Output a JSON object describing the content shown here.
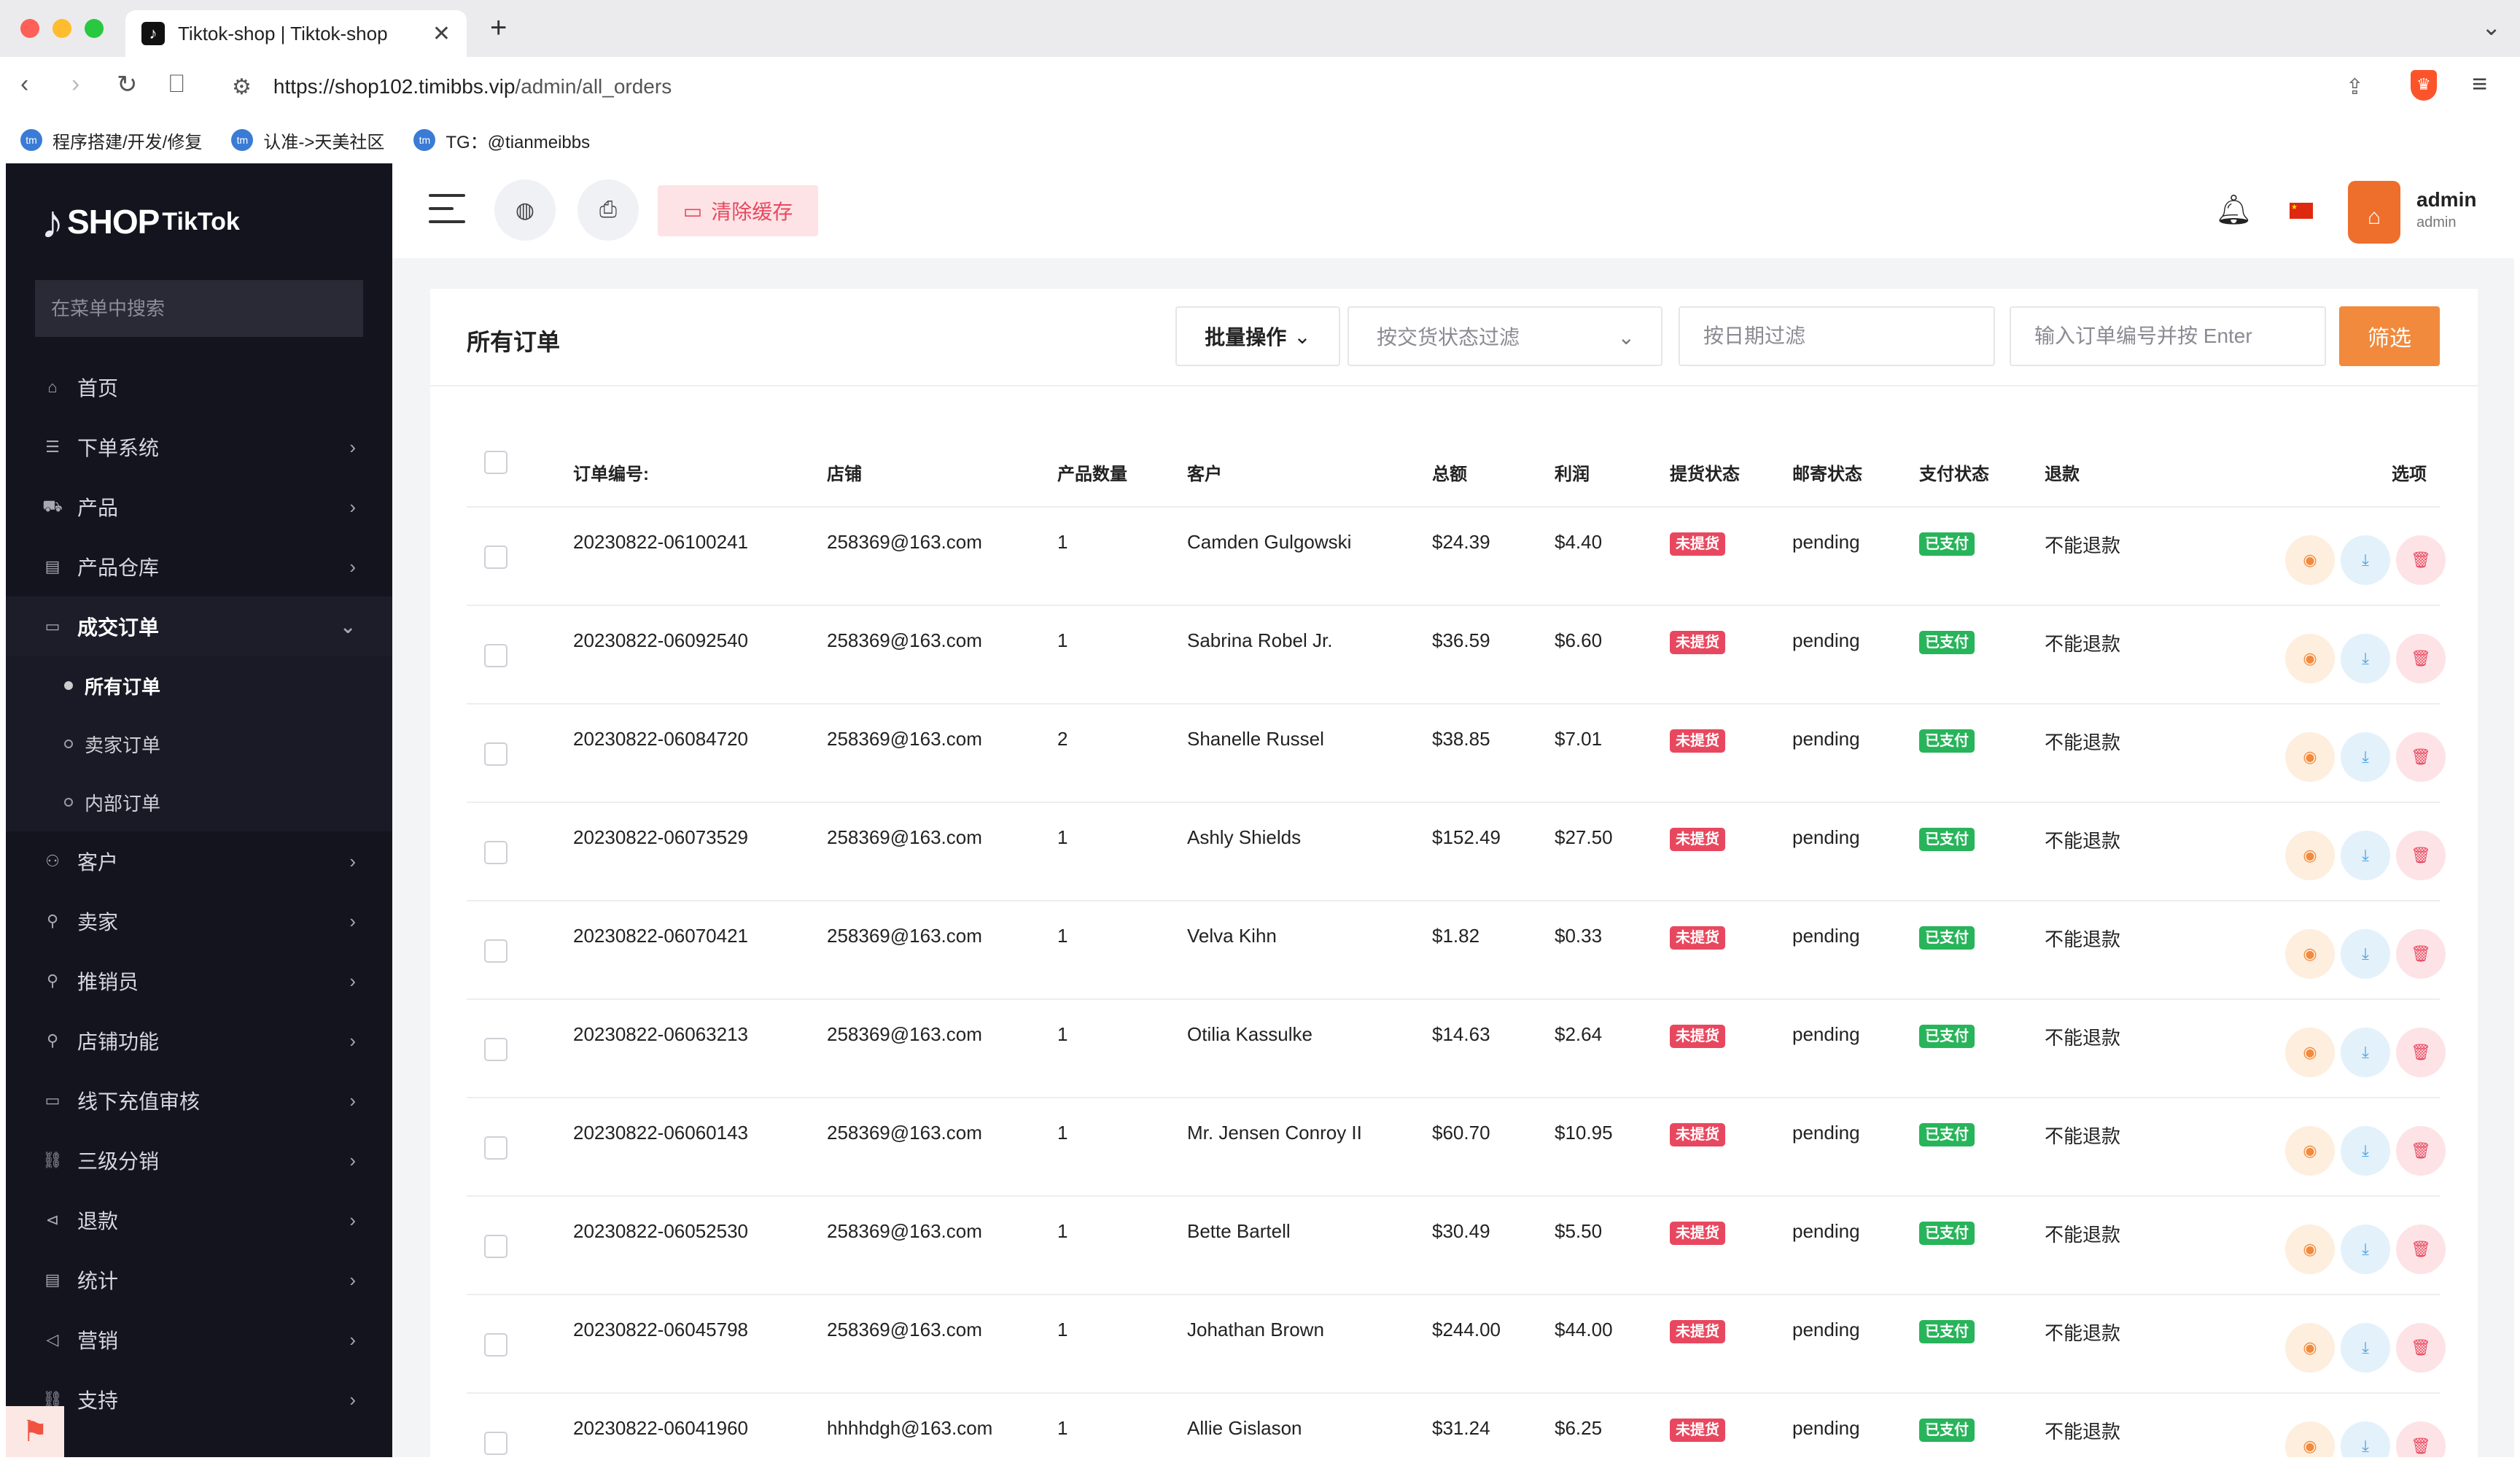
{
  "browser": {
    "tab_title": "Tiktok-shop | Tiktok-shop",
    "tab_close": "✕",
    "new_tab": "+",
    "url_host": "https://shop102.timibbs.vip",
    "url_path": "/admin/all_orders",
    "bookmarks": [
      {
        "label": "程序搭建/开发/修复"
      },
      {
        "label": "认准->天美社区"
      },
      {
        "label": "TG：@tianmeibbs"
      }
    ]
  },
  "sidebar": {
    "logo_shop": "SHOP",
    "logo_tiktok": "TikTok",
    "search_placeholder": "在菜单中搜索",
    "items": [
      {
        "label": "首页",
        "icon": "⌂",
        "chevron": ""
      },
      {
        "label": "下单系统",
        "icon": "☰",
        "chevron": "›"
      },
      {
        "label": "产品",
        "icon": "⛟",
        "chevron": "›"
      },
      {
        "label": "产品仓库",
        "icon": "▤",
        "chevron": "›"
      },
      {
        "label": "成交订单",
        "icon": "▭",
        "chevron": "⌄"
      }
    ],
    "subitems": [
      {
        "label": "所有订单"
      },
      {
        "label": "卖家订单"
      },
      {
        "label": "内部订单"
      }
    ],
    "items2": [
      {
        "label": "客户",
        "icon": "⚇",
        "chevron": "›"
      },
      {
        "label": "卖家",
        "icon": "⚲",
        "chevron": "›"
      },
      {
        "label": "推销员",
        "icon": "⚲",
        "chevron": "›"
      },
      {
        "label": "店铺功能",
        "icon": "⚲",
        "chevron": "›"
      },
      {
        "label": "线下充值审核",
        "icon": "▭",
        "chevron": "›"
      },
      {
        "label": "三级分销",
        "icon": "⛓",
        "chevron": "›"
      },
      {
        "label": "退款",
        "icon": "⊲",
        "chevron": "›"
      },
      {
        "label": "统计",
        "icon": "▤",
        "chevron": "›"
      },
      {
        "label": "营销",
        "icon": "◁",
        "chevron": "›"
      },
      {
        "label": "支持",
        "icon": "⛓",
        "chevron": "›"
      }
    ]
  },
  "topbar": {
    "clear_cache": "清除缓存",
    "user_name": "admin",
    "user_role": "admin"
  },
  "orders": {
    "title": "所有订单",
    "bulk_label": "批量操作",
    "status_filter_placeholder": "按交货状态过滤",
    "date_filter_placeholder": "按日期过滤",
    "code_search_placeholder": "输入订单编号并按 Enter",
    "filter_button": "筛选",
    "columns": {
      "code": "订单编号:",
      "shop": "店铺",
      "qty": "产品数量",
      "customer": "客户",
      "amount": "总额",
      "profit": "利润",
      "pickup": "提货状态",
      "shipping": "邮寄状态",
      "payment": "支付状态",
      "refund": "退款",
      "options": "选项"
    },
    "rows": [
      {
        "code": "20230822-06100241",
        "shop": "258369@163.com",
        "qty": "1",
        "customer": "Camden Gulgowski",
        "amount": "$24.39",
        "profit": "$4.40",
        "pickup": "未提货",
        "shipping": "pending",
        "payment": "已支付",
        "refund": "不能退款"
      },
      {
        "code": "20230822-06092540",
        "shop": "258369@163.com",
        "qty": "1",
        "customer": "Sabrina Robel Jr.",
        "amount": "$36.59",
        "profit": "$6.60",
        "pickup": "未提货",
        "shipping": "pending",
        "payment": "已支付",
        "refund": "不能退款"
      },
      {
        "code": "20230822-06084720",
        "shop": "258369@163.com",
        "qty": "2",
        "customer": "Shanelle Russel",
        "amount": "$38.85",
        "profit": "$7.01",
        "pickup": "未提货",
        "shipping": "pending",
        "payment": "已支付",
        "refund": "不能退款"
      },
      {
        "code": "20230822-06073529",
        "shop": "258369@163.com",
        "qty": "1",
        "customer": "Ashly Shields",
        "amount": "$152.49",
        "profit": "$27.50",
        "pickup": "未提货",
        "shipping": "pending",
        "payment": "已支付",
        "refund": "不能退款"
      },
      {
        "code": "20230822-06070421",
        "shop": "258369@163.com",
        "qty": "1",
        "customer": "Velva Kihn",
        "amount": "$1.82",
        "profit": "$0.33",
        "pickup": "未提货",
        "shipping": "pending",
        "payment": "已支付",
        "refund": "不能退款"
      },
      {
        "code": "20230822-06063213",
        "shop": "258369@163.com",
        "qty": "1",
        "customer": "Otilia Kassulke",
        "amount": "$14.63",
        "profit": "$2.64",
        "pickup": "未提货",
        "shipping": "pending",
        "payment": "已支付",
        "refund": "不能退款"
      },
      {
        "code": "20230822-06060143",
        "shop": "258369@163.com",
        "qty": "1",
        "customer": "Mr. Jensen Conroy II",
        "amount": "$60.70",
        "profit": "$10.95",
        "pickup": "未提货",
        "shipping": "pending",
        "payment": "已支付",
        "refund": "不能退款"
      },
      {
        "code": "20230822-06052530",
        "shop": "258369@163.com",
        "qty": "1",
        "customer": "Bette Bartell",
        "amount": "$30.49",
        "profit": "$5.50",
        "pickup": "未提货",
        "shipping": "pending",
        "payment": "已支付",
        "refund": "不能退款"
      },
      {
        "code": "20230822-06045798",
        "shop": "258369@163.com",
        "qty": "1",
        "customer": "Johathan Brown",
        "amount": "$244.00",
        "profit": "$44.00",
        "pickup": "未提货",
        "shipping": "pending",
        "payment": "已支付",
        "refund": "不能退款"
      },
      {
        "code": "20230822-06041960",
        "shop": "hhhhdgh@163.com",
        "qty": "1",
        "customer": "Allie Gislason",
        "amount": "$31.24",
        "profit": "$6.25",
        "pickup": "未提货",
        "shipping": "pending",
        "payment": "已支付",
        "refund": "不能退款"
      }
    ]
  }
}
